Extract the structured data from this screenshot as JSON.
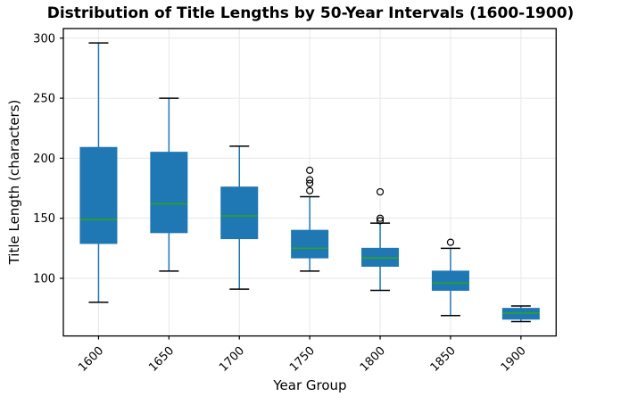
{
  "chart_data": {
    "type": "boxplot",
    "title": "Distribution of Title Lengths by 50-Year Intervals (1600-1900)",
    "xlabel": "Year Group",
    "ylabel": "Title Length (characters)",
    "categories": [
      "1600",
      "1650",
      "1700",
      "1750",
      "1800",
      "1850",
      "1900"
    ],
    "yticks": [
      100,
      150,
      200,
      250,
      300
    ],
    "ylim": [
      52,
      308
    ],
    "grid": true,
    "legend": "none",
    "colors": {
      "box_fill": "#1f77b4",
      "box_edge": "#1f77b4",
      "whisker": "#1f77b4",
      "cap": "#000000",
      "median": "#2ca02c",
      "flier_edge": "#000000",
      "grid": "#e7e7e7",
      "frame": "#000000",
      "text": "#000000"
    },
    "series": [
      {
        "group": "1600",
        "whisker_low": 80,
        "q1": 129,
        "median": 149,
        "q3": 209,
        "whisker_high": 296,
        "outliers": []
      },
      {
        "group": "1650",
        "whisker_low": 106,
        "q1": 138,
        "median": 162,
        "q3": 205,
        "whisker_high": 250,
        "outliers": []
      },
      {
        "group": "1700",
        "whisker_low": 91,
        "q1": 133,
        "median": 152,
        "q3": 176,
        "whisker_high": 210,
        "outliers": []
      },
      {
        "group": "1750",
        "whisker_low": 106,
        "q1": 117,
        "median": 125,
        "q3": 140,
        "whisker_high": 168,
        "outliers": [
          173,
          179,
          182,
          190
        ]
      },
      {
        "group": "1800",
        "whisker_low": 90,
        "q1": 110,
        "median": 117,
        "q3": 125,
        "whisker_high": 146,
        "outliers": [
          148,
          150,
          172
        ]
      },
      {
        "group": "1850",
        "whisker_low": 69,
        "q1": 90,
        "median": 96,
        "q3": 106,
        "whisker_high": 125,
        "outliers": [
          130
        ]
      },
      {
        "group": "1900",
        "whisker_low": 64,
        "q1": 66,
        "median": 71,
        "q3": 75,
        "whisker_high": 77,
        "outliers": []
      }
    ]
  }
}
